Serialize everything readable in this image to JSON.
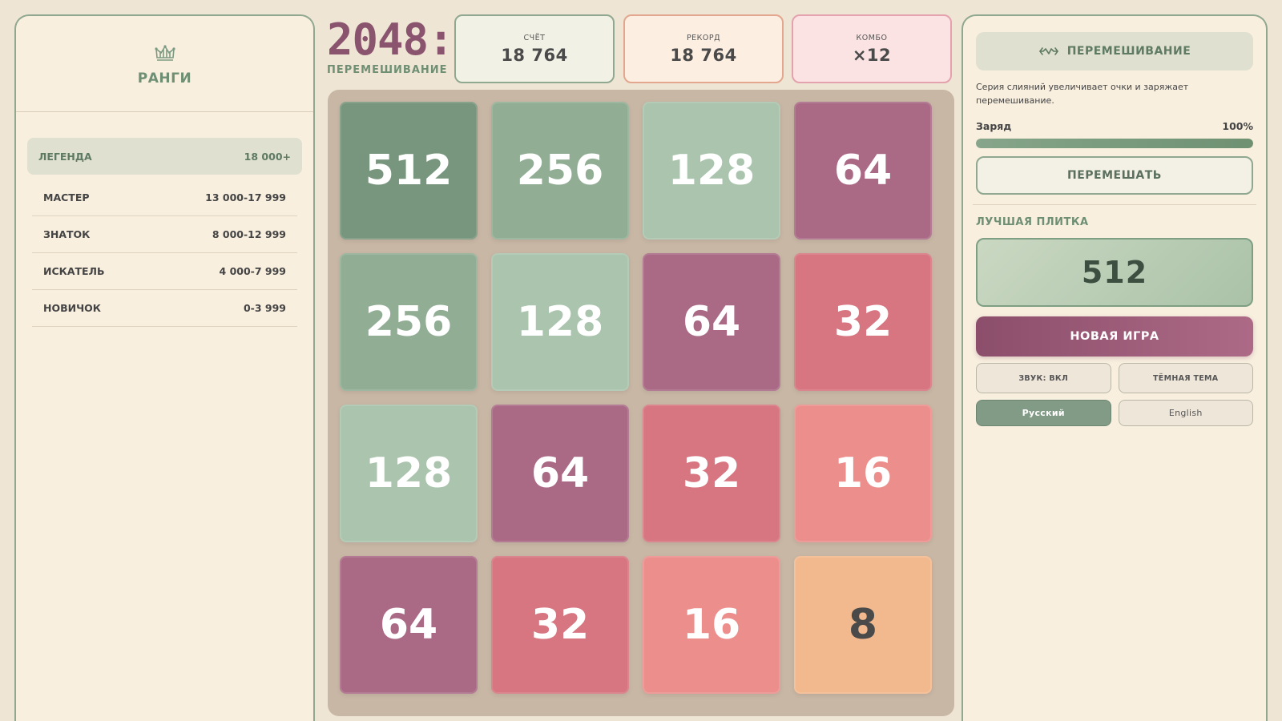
{
  "ranks": {
    "title": "РАНГИ",
    "icon": "crown-icon",
    "items": [
      {
        "name": "ЛЕГЕНДА",
        "range": "18 000+",
        "active": true
      },
      {
        "name": "МАСТЕР",
        "range": "13 000-17 999"
      },
      {
        "name": "ЗНАТОК",
        "range": "8 000-12 999"
      },
      {
        "name": "ИСКАТЕЛЬ",
        "range": "4 000-7 999"
      },
      {
        "name": "НОВИЧОК",
        "range": "0-3 999"
      }
    ]
  },
  "header": {
    "logo": "2048:",
    "subtitle": "ПЕРЕМЕШИВАНИЕ"
  },
  "stats": {
    "score": {
      "label": "СЧЁТ",
      "value": "18 764"
    },
    "best": {
      "label": "РЕКОРД",
      "value": "18 764"
    },
    "combo": {
      "label": "КОМБО",
      "value": "×12"
    }
  },
  "board": {
    "rows": [
      [
        512,
        256,
        128,
        64
      ],
      [
        256,
        128,
        64,
        32
      ],
      [
        128,
        64,
        32,
        16
      ],
      [
        64,
        32,
        16,
        8
      ]
    ],
    "colors": {
      "8": "#f3b98e",
      "16": "#ec8f8c",
      "32": "#d77580",
      "64": "#aa6a86",
      "128": "#aac4ad",
      "256": "#91ae95",
      "512": "#78967d"
    }
  },
  "shuffle_panel": {
    "title": "ПЕРЕМЕШИВАНИЕ",
    "icon": "shuffle-icon",
    "description": "Серия слияний увеличивает очки и заряжает перемешивание.",
    "charge_label": "Заряд",
    "charge_value": "100%",
    "charge_fraction": 1.0,
    "shuffle_button": "ПЕРЕМЕШАТЬ"
  },
  "best_tile": {
    "label": "ЛУЧШАЯ ПЛИТКА",
    "value": "512"
  },
  "controls": {
    "new_game": "НОВАЯ ИГРА",
    "sound": "ЗВУК: ВКЛ",
    "theme": "ТЁМНАЯ ТЕМА",
    "lang_ru": "Русский",
    "lang_en": "English"
  }
}
